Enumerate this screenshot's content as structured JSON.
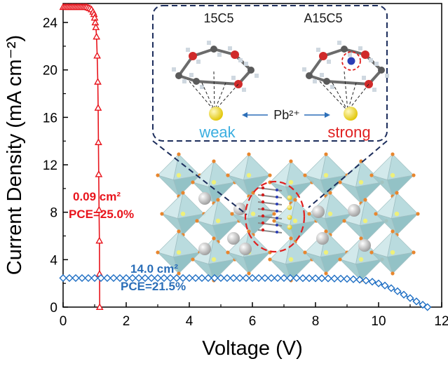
{
  "chart_data": {
    "type": "scatter",
    "xlabel": "Voltage (V)",
    "ylabel": "Current Density (mA cm⁻²)",
    "xlim": [
      0,
      12
    ],
    "ylim": [
      0,
      25.6
    ],
    "xticks": [
      "0",
      "2",
      "4",
      "6",
      "8",
      "10",
      "12"
    ],
    "yticks": [
      "0",
      "4",
      "8",
      "12",
      "16",
      "20",
      "24"
    ],
    "grid": false,
    "series": [
      {
        "color": "#e8141c",
        "marker": "triangle-open",
        "x": [
          0.0,
          0.05,
          0.1,
          0.15,
          0.2,
          0.25,
          0.3,
          0.35,
          0.4,
          0.45,
          0.5,
          0.55,
          0.6,
          0.65,
          0.7,
          0.75,
          0.8,
          0.85,
          0.9,
          0.95,
          0.98,
          1.0,
          1.02,
          1.04,
          1.06,
          1.08,
          1.1,
          1.11,
          1.12,
          1.13,
          1.14,
          1.15,
          1.155,
          1.16
        ],
        "y": [
          25.3,
          25.3,
          25.3,
          25.3,
          25.3,
          25.3,
          25.3,
          25.3,
          25.3,
          25.3,
          25.3,
          25.3,
          25.3,
          25.3,
          25.3,
          25.3,
          25.25,
          25.2,
          25.1,
          24.9,
          24.7,
          24.4,
          24.0,
          23.6,
          22.8,
          21.2,
          19.0,
          16.8,
          13.9,
          11.2,
          8.2,
          5.6,
          2.8,
          0.0
        ]
      },
      {
        "color": "#1f6fc4",
        "marker": "diamond-open",
        "x": [
          0.0,
          0.2,
          0.4,
          0.6,
          0.8,
          1.0,
          1.2,
          1.4,
          1.6,
          1.8,
          2.0,
          2.2,
          2.4,
          2.6,
          2.8,
          3.0,
          3.2,
          3.4,
          3.6,
          3.8,
          4.0,
          4.2,
          4.4,
          4.6,
          4.8,
          5.0,
          5.2,
          5.4,
          5.6,
          5.8,
          6.0,
          6.2,
          6.4,
          6.6,
          6.8,
          7.0,
          7.2,
          7.4,
          7.6,
          7.8,
          8.0,
          8.2,
          8.4,
          8.6,
          8.8,
          9.0,
          9.2,
          9.4,
          9.6,
          9.8,
          10.0,
          10.2,
          10.4,
          10.6,
          10.8,
          11.0,
          11.2,
          11.4,
          11.55
        ],
        "y": [
          2.45,
          2.45,
          2.45,
          2.45,
          2.45,
          2.45,
          2.45,
          2.45,
          2.45,
          2.45,
          2.45,
          2.45,
          2.45,
          2.45,
          2.45,
          2.45,
          2.45,
          2.45,
          2.45,
          2.45,
          2.45,
          2.45,
          2.45,
          2.45,
          2.45,
          2.45,
          2.45,
          2.45,
          2.45,
          2.45,
          2.45,
          2.45,
          2.45,
          2.45,
          2.45,
          2.45,
          2.45,
          2.45,
          2.44,
          2.44,
          2.43,
          2.43,
          2.42,
          2.41,
          2.4,
          2.38,
          2.35,
          2.31,
          2.24,
          2.14,
          2.0,
          1.82,
          1.6,
          1.34,
          1.05,
          0.76,
          0.48,
          0.2,
          0.0
        ]
      }
    ],
    "annotations": [
      {
        "lines": [
          "0.09 cm²",
          "PCE=25.0%"
        ],
        "color": "#e8141c"
      },
      {
        "lines": [
          "14.0 cm²",
          "PCE=21.5%"
        ],
        "color": "#2a6eb8"
      }
    ]
  },
  "inset": {
    "left_molecule": "15C5",
    "right_molecule": "A15C5",
    "ion": "Pb²⁺",
    "weak_label": "weak",
    "strong_label": "strong",
    "colors": {
      "weak": "#3aaee0",
      "strong": "#e02020",
      "frame": "#1c2d5c",
      "pb": "#f2dd30"
    }
  }
}
